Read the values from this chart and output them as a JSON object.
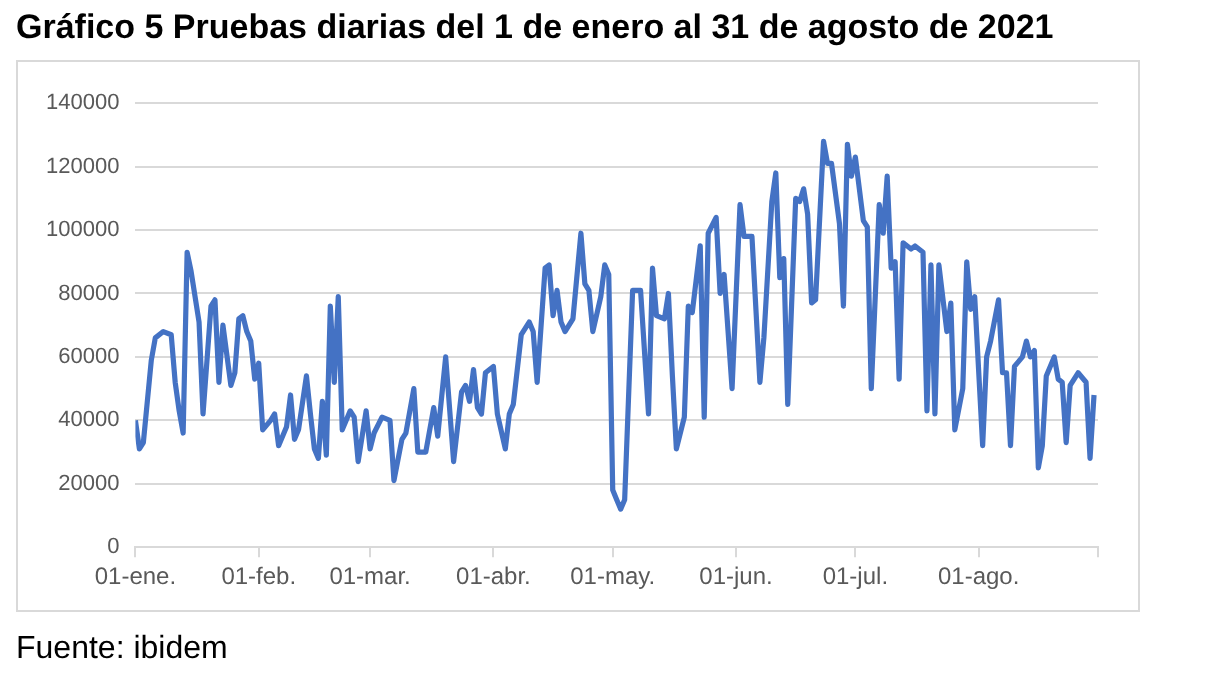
{
  "chart_data": {
    "type": "line",
    "title": "Gráfico 5 Pruebas diarias del 1 de enero al 31 de agosto de 2021",
    "annotations": [
      "Fuente: ibidem"
    ],
    "x": [
      "2021-01-01",
      "2021-01-02",
      "2021-01-03",
      "2021-01-05",
      "2021-01-06",
      "2021-01-08",
      "2021-01-10",
      "2021-01-11",
      "2021-01-12",
      "2021-01-13",
      "2021-01-14",
      "2021-01-15",
      "2021-01-17",
      "2021-01-18",
      "2021-01-20",
      "2021-01-21",
      "2021-01-22",
      "2021-01-23",
      "2021-01-25",
      "2021-01-26",
      "2021-01-27",
      "2021-01-28",
      "2021-01-29",
      "2021-01-30",
      "2021-01-31",
      "2021-02-01",
      "2021-02-02",
      "2021-02-04",
      "2021-02-05",
      "2021-02-06",
      "2021-02-08",
      "2021-02-09",
      "2021-02-10",
      "2021-02-11",
      "2021-02-13",
      "2021-02-14",
      "2021-02-15",
      "2021-02-16",
      "2021-02-17",
      "2021-02-18",
      "2021-02-19",
      "2021-02-20",
      "2021-02-21",
      "2021-02-22",
      "2021-02-24",
      "2021-02-25",
      "2021-02-26",
      "2021-02-28",
      "2021-03-01",
      "2021-03-02",
      "2021-03-04",
      "2021-03-06",
      "2021-03-07",
      "2021-03-09",
      "2021-03-10",
      "2021-03-12",
      "2021-03-13",
      "2021-03-15",
      "2021-03-17",
      "2021-03-18",
      "2021-03-20",
      "2021-03-22",
      "2021-03-24",
      "2021-03-25",
      "2021-03-26",
      "2021-03-27",
      "2021-03-28",
      "2021-03-29",
      "2021-03-30",
      "2021-04-01",
      "2021-04-02",
      "2021-04-04",
      "2021-04-05",
      "2021-04-06",
      "2021-04-08",
      "2021-04-10",
      "2021-04-11",
      "2021-04-12",
      "2021-04-14",
      "2021-04-15",
      "2021-04-16",
      "2021-04-17",
      "2021-04-18",
      "2021-04-19",
      "2021-04-21",
      "2021-04-23",
      "2021-04-24",
      "2021-04-25",
      "2021-04-26",
      "2021-04-28",
      "2021-04-29",
      "2021-04-30",
      "2021-05-01",
      "2021-05-02",
      "2021-05-03",
      "2021-05-04",
      "2021-05-06",
      "2021-05-08",
      "2021-05-10",
      "2021-05-11",
      "2021-05-12",
      "2021-05-14",
      "2021-05-15",
      "2021-05-16",
      "2021-05-17",
      "2021-05-19",
      "2021-05-20",
      "2021-05-21",
      "2021-05-23",
      "2021-05-24",
      "2021-05-25",
      "2021-05-27",
      "2021-05-28",
      "2021-05-29",
      "2021-05-31",
      "2021-06-02",
      "2021-06-03",
      "2021-06-05",
      "2021-06-07",
      "2021-06-08",
      "2021-06-10",
      "2021-06-11",
      "2021-06-12",
      "2021-06-13",
      "2021-06-14",
      "2021-06-16",
      "2021-06-17",
      "2021-06-18",
      "2021-06-19",
      "2021-06-20",
      "2021-06-21",
      "2021-06-23",
      "2021-06-24",
      "2021-06-25",
      "2021-06-27",
      "2021-06-28",
      "2021-06-29",
      "2021-06-30",
      "2021-07-01",
      "2021-07-03",
      "2021-07-04",
      "2021-07-05",
      "2021-07-07",
      "2021-07-08",
      "2021-07-09",
      "2021-07-10",
      "2021-07-11",
      "2021-07-12",
      "2021-07-13",
      "2021-07-15",
      "2021-07-16",
      "2021-07-18",
      "2021-07-19",
      "2021-07-20",
      "2021-07-21",
      "2021-07-22",
      "2021-07-24",
      "2021-07-25",
      "2021-07-26",
      "2021-07-28",
      "2021-07-29",
      "2021-07-30",
      "2021-07-31",
      "2021-08-02",
      "2021-08-03",
      "2021-08-04",
      "2021-08-06",
      "2021-08-07",
      "2021-08-08",
      "2021-08-09",
      "2021-08-10",
      "2021-08-12",
      "2021-08-13",
      "2021-08-14",
      "2021-08-15",
      "2021-08-16",
      "2021-08-17",
      "2021-08-18",
      "2021-08-20",
      "2021-08-21",
      "2021-08-22",
      "2021-08-23",
      "2021-08-24",
      "2021-08-26",
      "2021-08-28",
      "2021-08-29",
      "2021-08-30"
    ],
    "series": [
      {
        "color": "#4472c4",
        "values": [
          40000,
          31000,
          33000,
          59000,
          66000,
          68000,
          67000,
          52000,
          43000,
          36000,
          93000,
          87000,
          71000,
          42000,
          76000,
          78000,
          52000,
          70000,
          51000,
          55000,
          72000,
          73000,
          68000,
          65000,
          53000,
          58000,
          37000,
          40000,
          42000,
          32000,
          38000,
          48000,
          34000,
          37000,
          54000,
          42000,
          31000,
          28000,
          46000,
          29000,
          76000,
          52000,
          79000,
          37000,
          43000,
          41000,
          27000,
          43000,
          31000,
          36000,
          41000,
          40000,
          21000,
          34000,
          36000,
          50000,
          30000,
          30000,
          44000,
          35000,
          60000,
          27000,
          49000,
          51000,
          46000,
          56000,
          44000,
          42000,
          55000,
          57000,
          42000,
          31000,
          42000,
          45000,
          67000,
          71000,
          68000,
          52000,
          88000,
          89000,
          73000,
          81000,
          71000,
          68000,
          72000,
          99000,
          83000,
          81000,
          68000,
          79000,
          89000,
          86000,
          18000,
          15000,
          12000,
          15000,
          81000,
          81000,
          42000,
          88000,
          73000,
          72000,
          80000,
          54000,
          31000,
          41000,
          76000,
          74000,
          95000,
          41000,
          99000,
          104000,
          80000,
          86000,
          50000,
          108000,
          98000,
          98000,
          52000,
          66000,
          109000,
          118000,
          85000,
          91000,
          45000,
          110000,
          109000,
          113000,
          105000,
          77000,
          78000,
          128000,
          121000,
          121000,
          102000,
          76000,
          127000,
          117000,
          123000,
          103000,
          101000,
          50000,
          108000,
          99000,
          117000,
          88000,
          90000,
          53000,
          96000,
          94000,
          95000,
          93000,
          43000,
          89000,
          42000,
          89000,
          68000,
          77000,
          37000,
          50000,
          90000,
          75000,
          79000,
          32000,
          60000,
          65000,
          78000,
          55000,
          55000,
          32000,
          57000,
          60000,
          65000,
          60000,
          62000,
          25000,
          32000,
          54000,
          60000,
          53000,
          52000,
          33000,
          51000,
          55000,
          52000,
          28000,
          48000
        ]
      }
    ],
    "xlim": [
      "2021-01-01",
      "2021-08-31"
    ],
    "xticks": [
      {
        "value": "2021-01-01",
        "label": "01-ene."
      },
      {
        "value": "2021-02-01",
        "label": "01-feb."
      },
      {
        "value": "2021-03-01",
        "label": "01-mar."
      },
      {
        "value": "2021-04-01",
        "label": "01-abr."
      },
      {
        "value": "2021-05-01",
        "label": "01-may."
      },
      {
        "value": "2021-06-01",
        "label": "01-jun."
      },
      {
        "value": "2021-07-01",
        "label": "01-jul."
      },
      {
        "value": "2021-08-01",
        "label": "01-ago."
      },
      {
        "value": "2021-08-31",
        "label": null
      }
    ],
    "ylim": [
      0,
      140000
    ],
    "yticks": [
      0,
      20000,
      40000,
      60000,
      80000,
      100000,
      120000,
      140000
    ],
    "grid": "y",
    "legend": false,
    "marker": "none",
    "line_style": "solid"
  }
}
